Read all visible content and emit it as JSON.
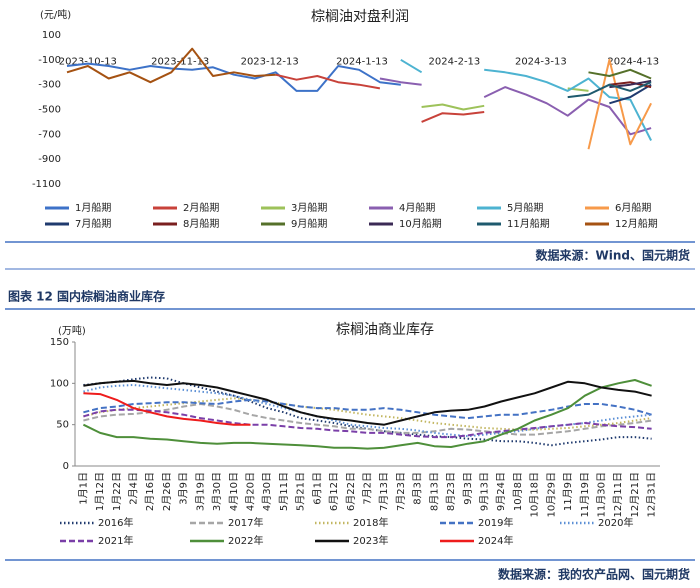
{
  "chart_data": [
    {
      "type": "line",
      "title": "棕榈油对盘利润",
      "y_label": "(元/吨)",
      "x": [
        "2023-10-06",
        "2023-10-13",
        "2023-10-20",
        "2023-10-27",
        "2023-11-03",
        "2023-11-10",
        "2023-11-17",
        "2023-11-24",
        "2023-12-01",
        "2023-12-08",
        "2023-12-15",
        "2023-12-22",
        "2023-12-29",
        "2024-01-05",
        "2024-01-12",
        "2024-01-19",
        "2024-01-26",
        "2024-02-02",
        "2024-02-09",
        "2024-02-16",
        "2024-02-23",
        "2024-03-01",
        "2024-03-08",
        "2024-03-15",
        "2024-03-22",
        "2024-03-29",
        "2024-04-05",
        "2024-04-12",
        "2024-04-19"
      ],
      "xlim": [
        "2023-10-06",
        "2024-04-25"
      ],
      "xticks": [
        "2023-10-13",
        "2023-11-13",
        "2023-12-13",
        "2024-1-13",
        "2024-2-13",
        "2024-3-13",
        "2024-4-13"
      ],
      "ylim": [
        -1100,
        100
      ],
      "yticks": [
        100,
        -100,
        -300,
        -500,
        -700,
        -900,
        -1100
      ],
      "grid": false,
      "series": [
        {
          "name": "1月船期",
          "color": "#3d72c8",
          "values": [
            -150,
            -130,
            -150,
            -180,
            -150,
            -170,
            -180,
            -160,
            -220,
            -250,
            -200,
            -350,
            -350,
            -150,
            -180,
            -280,
            -300,
            null,
            null,
            null,
            null,
            null,
            null,
            null,
            null,
            null,
            null,
            null,
            null
          ]
        },
        {
          "name": "2月船期",
          "color": "#c8423a",
          "values": [
            null,
            null,
            null,
            null,
            null,
            null,
            null,
            null,
            null,
            null,
            -220,
            -260,
            -230,
            -280,
            -300,
            -330,
            null,
            -600,
            -530,
            -540,
            -520,
            null,
            null,
            null,
            null,
            null,
            null,
            null,
            null
          ]
        },
        {
          "name": "3月船期",
          "color": "#9dc25a",
          "values": [
            null,
            null,
            null,
            null,
            null,
            null,
            null,
            null,
            null,
            null,
            null,
            null,
            null,
            null,
            null,
            null,
            null,
            -480,
            -460,
            -500,
            -470,
            null,
            null,
            null,
            -330,
            -350,
            null,
            null,
            null
          ]
        },
        {
          "name": "4月船期",
          "color": "#8a5fb0",
          "values": [
            null,
            null,
            null,
            null,
            null,
            null,
            null,
            null,
            null,
            null,
            null,
            null,
            null,
            null,
            null,
            -250,
            -280,
            -300,
            null,
            null,
            -400,
            -320,
            -380,
            -450,
            -550,
            -420,
            -480,
            -700,
            -650
          ]
        },
        {
          "name": "5月船期",
          "color": "#4db3d1",
          "values": [
            null,
            null,
            null,
            null,
            null,
            null,
            null,
            null,
            null,
            null,
            null,
            null,
            null,
            null,
            null,
            null,
            -100,
            -200,
            null,
            null,
            -180,
            -200,
            -230,
            -280,
            -350,
            -250,
            -400,
            -420,
            -750
          ]
        },
        {
          "name": "6月船期",
          "color": "#f79a4a",
          "values": [
            null,
            null,
            null,
            null,
            null,
            null,
            null,
            null,
            null,
            null,
            null,
            null,
            null,
            null,
            null,
            null,
            null,
            null,
            null,
            null,
            null,
            null,
            null,
            null,
            null,
            -820,
            -100,
            -780,
            -450
          ]
        },
        {
          "name": "7月船期",
          "color": "#1f3a6e",
          "values": [
            null,
            null,
            null,
            null,
            null,
            null,
            null,
            null,
            null,
            null,
            null,
            null,
            null,
            null,
            null,
            null,
            null,
            null,
            null,
            null,
            null,
            null,
            null,
            null,
            null,
            null,
            -450,
            -400,
            -300
          ]
        },
        {
          "name": "8月船期",
          "color": "#7a1f1f",
          "values": [
            null,
            null,
            null,
            null,
            null,
            null,
            null,
            null,
            null,
            null,
            null,
            null,
            null,
            null,
            null,
            null,
            null,
            null,
            null,
            null,
            null,
            null,
            null,
            null,
            null,
            null,
            -300,
            -280,
            -320
          ]
        },
        {
          "name": "9月船期",
          "color": "#55702a",
          "values": [
            null,
            null,
            null,
            null,
            null,
            null,
            null,
            null,
            null,
            null,
            null,
            null,
            null,
            null,
            null,
            null,
            null,
            null,
            null,
            null,
            null,
            null,
            null,
            null,
            null,
            -200,
            -230,
            -180,
            -250
          ]
        },
        {
          "name": "10月船期",
          "color": "#3b2a55",
          "values": [
            null,
            null,
            null,
            null,
            null,
            null,
            null,
            null,
            null,
            null,
            null,
            null,
            null,
            null,
            null,
            null,
            null,
            null,
            null,
            null,
            null,
            null,
            null,
            null,
            null,
            null,
            -320,
            -300,
            -270
          ]
        },
        {
          "name": "11月船期",
          "color": "#1e5a6e",
          "values": [
            null,
            null,
            null,
            null,
            null,
            null,
            null,
            null,
            null,
            null,
            null,
            null,
            null,
            null,
            null,
            null,
            null,
            null,
            null,
            null,
            null,
            null,
            null,
            null,
            -400,
            -380,
            -300,
            -350,
            -280
          ]
        },
        {
          "name": "12月船期",
          "color": "#a55212",
          "values": [
            -200,
            -150,
            -250,
            -200,
            -280,
            -200,
            -10,
            -230,
            -200,
            -230,
            -220,
            null,
            null,
            null,
            null,
            null,
            null,
            null,
            null,
            null,
            null,
            null,
            null,
            null,
            null,
            null,
            null,
            null,
            null
          ]
        }
      ],
      "source": "数据来源：Wind、国元期货"
    },
    {
      "type": "line",
      "caption": "图表 12 国内棕榈油商业库存",
      "title": "棕榈油商业库存",
      "y_label": "(万吨)",
      "categories": [
        "1月1日",
        "1月12日",
        "1月22日",
        "2月4日",
        "2月16日",
        "2月26日",
        "3月9日",
        "3月19日",
        "3月30日",
        "4月10日",
        "4月20日",
        "4月30日",
        "5月11日",
        "5月21日",
        "6月1日",
        "6月12日",
        "6月22日",
        "7月2日",
        "7月13日",
        "7月23日",
        "8月3日",
        "8月13日",
        "8月23日",
        "9月3日",
        "9月13日",
        "9月24日",
        "10月8日",
        "10月18日",
        "10月29日",
        "11月9日",
        "11月19日",
        "11月30日",
        "12月11日",
        "12月21日",
        "12月31日"
      ],
      "ylim": [
        0,
        150
      ],
      "yticks": [
        0,
        50,
        100,
        150
      ],
      "grid": false,
      "series": [
        {
          "name": "2016年",
          "color": "#1f3a6e",
          "dash": "dotted",
          "values": [
            98,
            100,
            102,
            105,
            107,
            106,
            100,
            95,
            90,
            85,
            78,
            70,
            65,
            58,
            55,
            52,
            48,
            45,
            42,
            40,
            38,
            36,
            35,
            33,
            32,
            30,
            30,
            28,
            25,
            28,
            30,
            32,
            35,
            35,
            33
          ]
        },
        {
          "name": "2017年",
          "color": "#a6a6a6",
          "dash": "dashed",
          "values": [
            55,
            60,
            62,
            63,
            65,
            68,
            72,
            75,
            72,
            68,
            62,
            58,
            55,
            52,
            50,
            48,
            45,
            45,
            42,
            40,
            40,
            42,
            45,
            44,
            42,
            40,
            38,
            38,
            40,
            42,
            45,
            48,
            50,
            52,
            55
          ]
        },
        {
          "name": "2018年",
          "color": "#c2b660",
          "dash": "dotted",
          "values": [
            60,
            65,
            68,
            70,
            72,
            74,
            76,
            78,
            80,
            82,
            80,
            78,
            75,
            72,
            70,
            68,
            65,
            62,
            60,
            58,
            55,
            52,
            50,
            48,
            46,
            45,
            44,
            44,
            45,
            46,
            48,
            50,
            52,
            55,
            58
          ]
        },
        {
          "name": "2019年",
          "color": "#4472c4",
          "dash": "dashed",
          "values": [
            65,
            70,
            72,
            75,
            76,
            77,
            77,
            76,
            75,
            78,
            80,
            78,
            75,
            72,
            70,
            70,
            68,
            68,
            70,
            68,
            65,
            62,
            60,
            58,
            60,
            62,
            62,
            65,
            68,
            72,
            75,
            75,
            72,
            68,
            62
          ]
        },
        {
          "name": "2020年",
          "color": "#5b8fd5",
          "dash": "dotted",
          "values": [
            90,
            95,
            97,
            98,
            96,
            94,
            92,
            90,
            88,
            85,
            80,
            75,
            70,
            65,
            60,
            55,
            50,
            48,
            46,
            45,
            43,
            40,
            38,
            36,
            38,
            40,
            42,
            45,
            48,
            50,
            52,
            55,
            58,
            60,
            62
          ]
        },
        {
          "name": "2021年",
          "color": "#7a3fa8",
          "dash": "dashed",
          "values": [
            60,
            66,
            68,
            68,
            67,
            65,
            62,
            58,
            55,
            52,
            50,
            50,
            48,
            46,
            45,
            43,
            42,
            40,
            40,
            38,
            36,
            35,
            35,
            37,
            40,
            42,
            44,
            46,
            48,
            50,
            52,
            50,
            48,
            47,
            45
          ]
        },
        {
          "name": "2022年",
          "color": "#4e8f3a",
          "dash": "solid",
          "values": [
            50,
            40,
            35,
            35,
            33,
            32,
            30,
            28,
            27,
            28,
            28,
            27,
            26,
            25,
            24,
            22,
            22,
            21,
            22,
            25,
            28,
            24,
            23,
            27,
            30,
            38,
            45,
            55,
            62,
            70,
            85,
            95,
            100,
            104,
            97
          ]
        },
        {
          "name": "2023年",
          "color": "#111111",
          "dash": "solid",
          "values": [
            97,
            100,
            102,
            103,
            100,
            98,
            100,
            98,
            95,
            90,
            85,
            80,
            72,
            65,
            60,
            57,
            55,
            52,
            50,
            55,
            60,
            65,
            67,
            68,
            72,
            78,
            83,
            88,
            95,
            102,
            100,
            95,
            92,
            90,
            85
          ]
        },
        {
          "name": "2024年",
          "color": "#ee1c1c",
          "dash": "solid",
          "values": [
            88,
            87,
            80,
            70,
            65,
            60,
            57,
            55,
            52,
            50,
            50,
            null,
            null,
            null,
            null,
            null,
            null,
            null,
            null,
            null,
            null,
            null,
            null,
            null,
            null,
            null,
            null,
            null,
            null,
            null,
            null,
            null,
            null,
            null,
            null
          ]
        }
      ],
      "source": "数据来源：我的农产品网、国元期货"
    }
  ]
}
